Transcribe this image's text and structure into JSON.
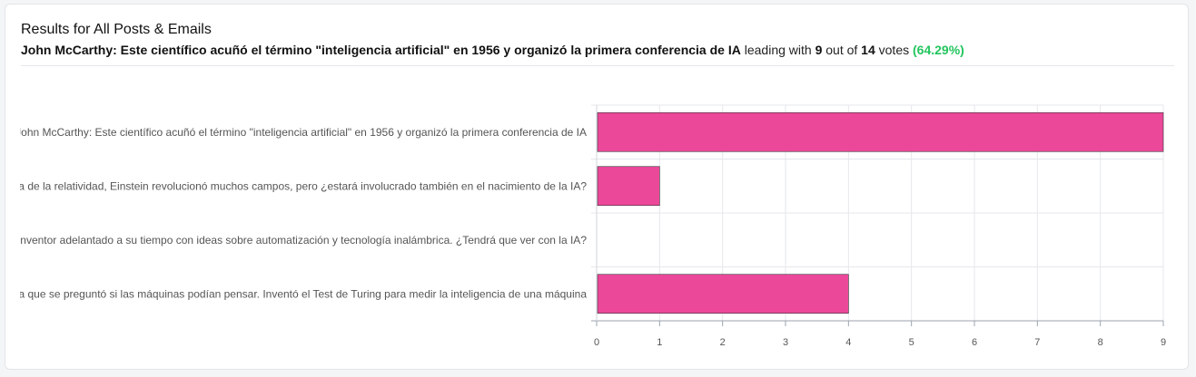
{
  "header": {
    "title": "Results for All Posts & Emails",
    "leader": "John McCarthy: Este científico acuñó el término \"inteligencia artificial\" en 1956 y organizó la primera conferencia de IA",
    "leading_with": "leading with",
    "votes_leader": "9",
    "out_of": "out of",
    "votes_total": "14",
    "votes_word": "votes",
    "percent": "(64.29%)"
  },
  "colors": {
    "bar": "#ec4899",
    "percent": "#22c55e"
  },
  "chart_data": {
    "type": "bar",
    "orientation": "horizontal",
    "categories": [
      "John McCarthy: Este científico acuñó el término \"inteligencia artificial\" en 1956 y organizó la primera conferencia de IA",
      "Albert Einstein: Famoso por su teoría de la relatividad, Einstein revolucionó muchos campos, pero ¿estará involucrado también en el nacimiento de la IA?",
      "Nikola Tesla: Un inventor adelantado a su tiempo con ideas sobre automatización y tecnología inalámbrica. ¿Tendrá que ver con la IA?",
      "Alan Turing: Un pionero de la informática que se preguntó si las máquinas podían pensar. Inventó el Test de Turing para medir la inteligencia de una máquina"
    ],
    "values": [
      9,
      1,
      0,
      4
    ],
    "xlim": [
      0,
      9
    ],
    "xticks": [
      "0",
      "1",
      "2",
      "3",
      "4",
      "5",
      "6",
      "7",
      "8",
      "9"
    ],
    "grid": true,
    "legend": "none"
  }
}
